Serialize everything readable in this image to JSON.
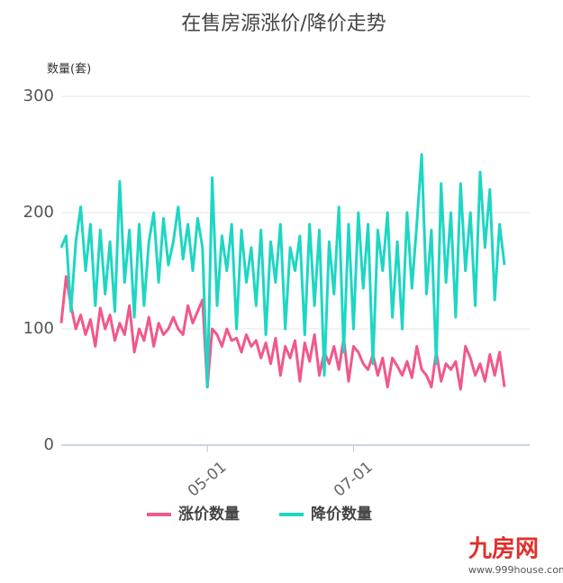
{
  "chart_data": {
    "type": "line",
    "title": "在售房源涨价/降价走势",
    "y_label": "数量(套)",
    "categories": [
      null,
      null,
      null,
      null,
      null,
      null,
      null,
      null,
      null,
      null,
      null,
      null,
      null,
      null,
      null,
      null,
      null,
      null,
      null,
      null,
      null,
      null,
      null,
      null,
      null,
      null,
      null,
      null,
      null,
      null,
      "05-01",
      null,
      null,
      null,
      null,
      null,
      null,
      null,
      null,
      null,
      null,
      null,
      null,
      null,
      null,
      null,
      null,
      null,
      null,
      null,
      null,
      null,
      null,
      null,
      null,
      null,
      null,
      null,
      null,
      null,
      "07-01",
      null,
      null,
      null,
      null,
      null,
      null,
      null,
      null,
      null,
      null,
      null,
      null,
      null,
      null,
      null,
      null,
      null,
      null,
      null,
      null,
      null,
      null,
      null,
      null,
      null,
      null,
      null,
      null,
      null,
      null,
      null
    ],
    "series": [
      {
        "name": "涨价数量",
        "color": "#f0588c",
        "values": [
          105,
          145,
          120,
          100,
          112,
          95,
          108,
          85,
          118,
          100,
          112,
          90,
          105,
          95,
          120,
          80,
          100,
          90,
          110,
          85,
          105,
          95,
          100,
          110,
          100,
          95,
          120,
          105,
          115,
          125,
          50,
          100,
          95,
          85,
          100,
          90,
          92,
          80,
          95,
          85,
          90,
          75,
          88,
          70,
          92,
          60,
          85,
          75,
          90,
          55,
          88,
          72,
          95,
          60,
          80,
          70,
          85,
          65,
          92,
          55,
          85,
          80,
          70,
          65,
          78,
          60,
          75,
          50,
          75,
          68,
          60,
          72,
          58,
          85,
          65,
          60,
          50,
          80,
          55,
          70,
          65,
          72,
          48,
          85,
          75,
          60,
          70,
          55,
          78,
          60,
          80,
          50
        ]
      },
      {
        "name": "降价数量",
        "color": "#1ed6c3",
        "values": [
          170,
          180,
          115,
          175,
          205,
          150,
          190,
          120,
          185,
          130,
          175,
          115,
          227,
          140,
          185,
          110,
          190,
          120,
          175,
          200,
          140,
          195,
          155,
          175,
          205,
          160,
          190,
          150,
          195,
          170,
          50,
          230,
          120,
          180,
          150,
          190,
          100,
          185,
          140,
          170,
          120,
          185,
          95,
          175,
          140,
          190,
          100,
          170,
          150,
          180,
          95,
          190,
          120,
          185,
          60,
          175,
          130,
          205,
          80,
          190,
          100,
          200,
          135,
          190,
          70,
          185,
          150,
          200,
          110,
          175,
          100,
          200,
          135,
          190,
          250,
          130,
          185,
          70,
          225,
          140,
          200,
          110,
          225,
          150,
          200,
          120,
          235,
          170,
          220,
          125,
          190,
          155
        ]
      }
    ],
    "ylim": [
      0,
      300
    ],
    "yticks": [
      0,
      100,
      200,
      300
    ],
    "grid": true
  },
  "watermark": {
    "brand": "九房网",
    "url": "www.999house.com"
  }
}
